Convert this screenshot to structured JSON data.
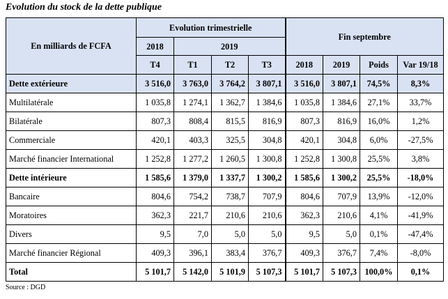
{
  "title": "Evolution du stock de la dette publique",
  "header": {
    "unit_label": "En milliards de FCFA",
    "group_quarterly": "Evolution trimestrielle",
    "group_september": "Fin septembre",
    "year_2018": "2018",
    "year_2019": "2019",
    "columns": [
      "T4",
      "T1",
      "T2",
      "T3",
      "2018",
      "2019",
      "Poids",
      "Var 19/18"
    ]
  },
  "rows": [
    {
      "label": "Dette extérieure",
      "values": [
        "3 516,0",
        "3 763,0",
        "3 764,2",
        "3 807,1",
        "3 516,0",
        "3 807,1",
        "74,5%",
        "8,3%"
      ]
    },
    {
      "label": "Multilatérale",
      "values": [
        "1 035,8",
        "1 274,1",
        "1 362,7",
        "1 384,6",
        "1 035,8",
        "1 384,6",
        "27,1%",
        "33,7%"
      ]
    },
    {
      "label": "Bilatérale",
      "values": [
        "807,3",
        "808,4",
        "815,5",
        "816,9",
        "807,3",
        "816,9",
        "16,0%",
        "1,2%"
      ]
    },
    {
      "label": "Commerciale",
      "values": [
        "420,1",
        "403,3",
        "325,5",
        "304,8",
        "420,1",
        "304,8",
        "6,0%",
        "-27,5%"
      ]
    },
    {
      "label": "Marché financier International",
      "values": [
        "1 252,8",
        "1 277,2",
        "1 260,5",
        "1 300,8",
        "1 252,8",
        "1 300,8",
        "25,5%",
        "3,8%"
      ]
    },
    {
      "label": "Dette intérieure",
      "values": [
        "1 585,6",
        "1 379,0",
        "1 337,7",
        "1 300,2",
        "1 585,6",
        "1 300,2",
        "25,5%",
        "-18,0%"
      ]
    },
    {
      "label": "Bancaire",
      "values": [
        "804,6",
        "754,2",
        "738,7",
        "707,9",
        "804,6",
        "707,9",
        "13,9%",
        "-12,0%"
      ]
    },
    {
      "label": "Moratoires",
      "values": [
        "362,3",
        "221,7",
        "210,6",
        "210,6",
        "362,3",
        "210,6",
        "4,1%",
        "-41,9%"
      ]
    },
    {
      "label": "Divers",
      "values": [
        "9,5",
        "7,0",
        "5,0",
        "5,0",
        "9,5",
        "5,0",
        "0,1%",
        "-47,4%"
      ]
    },
    {
      "label": "Marché financier Régional",
      "values": [
        "409,3",
        "396,1",
        "383,4",
        "376,7",
        "409,3",
        "376,7",
        "7,4%",
        "-8,0%"
      ]
    },
    {
      "label": "Total",
      "values": [
        "5 101,7",
        "5 142,0",
        "5 101,9",
        "5 107,3",
        "5 101,7",
        "5 107,3",
        "100,0%",
        "0,1%"
      ]
    }
  ],
  "source": "Source : DGD",
  "colors": {
    "header_fill": "#d9e2f3",
    "border": "#000000"
  }
}
